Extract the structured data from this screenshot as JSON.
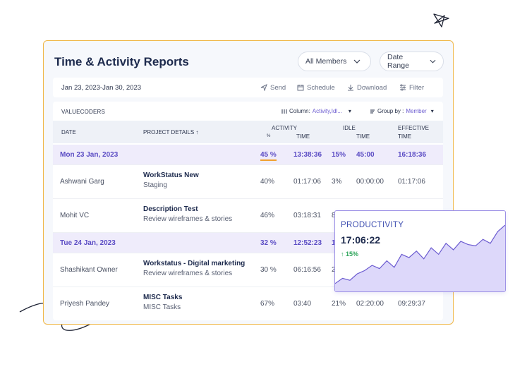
{
  "header": {
    "title": "Time & Activity Reports",
    "members_select": "All Members",
    "date_range_select": "Date Range"
  },
  "toolbar": {
    "date_range": "Jan 23, 2023-Jan 30, 2023",
    "send": "Send",
    "schedule": "Schedule",
    "download": "Download",
    "filter": "Filter"
  },
  "table": {
    "org": "VALUECODERS",
    "column_label": "Column:",
    "column_value": "Activity,Idl...",
    "group_label": "Group by :",
    "group_value": "Member",
    "headers": {
      "date": "DATE",
      "project": "PROJECT DETAILS ↑",
      "activity": "ACTIVITY",
      "activity_pct": "%",
      "activity_time": "TIME",
      "idle": "IDLE",
      "idle_time": "TIME",
      "effective": "EFFECTIVE",
      "effective_time": "TIME"
    },
    "day1": {
      "date": "Mon 23 Jan, 2023",
      "act_pct": "45 %",
      "act_time": "13:38:36",
      "idle_pct": "15%",
      "idle_time": "45:00",
      "effective": "16:18:36"
    },
    "row1": {
      "member": "Ashwani Garg",
      "project": "WorkStatus New",
      "task": "Staging",
      "act_pct": "40%",
      "act_time": "01:17:06",
      "idle_pct": "3%",
      "idle_time": "00:00:00",
      "effective": "01:17:06"
    },
    "row2": {
      "member": "Mohit VC",
      "project": "Description Test",
      "task": "Review wireframes & stories",
      "act_pct": "46%",
      "act_time": "03:18:31",
      "idle_pct": "8"
    },
    "day2": {
      "date": "Tue 24 Jan, 2023",
      "act_pct": "32 %",
      "act_time": "12:52:23",
      "idle_pct": "1"
    },
    "row3": {
      "member": "Shashikant Owner",
      "project": "Workstatus - Digital marketing",
      "task": "Review wireframes & stories",
      "act_pct": "30 %",
      "act_time": "06:16:56",
      "idle_pct": "2"
    },
    "row4": {
      "member": "Priyesh Pandey",
      "project": "MISC Tasks",
      "task": "MISC Tasks",
      "act_pct": "67%",
      "act_time": "03:40",
      "idle_pct": "21%",
      "idle_time": "02:20:00",
      "effective": "09:29:37"
    }
  },
  "productivity": {
    "title": "PRODUCTIVITY",
    "time": "17:06:22",
    "delta": "15%",
    "trend_values": [
      0.1,
      0.18,
      0.15,
      0.25,
      0.3,
      0.38,
      0.33,
      0.45,
      0.35,
      0.55,
      0.5,
      0.6,
      0.48,
      0.65,
      0.55,
      0.72,
      0.62,
      0.75,
      0.7,
      0.68,
      0.78,
      0.72,
      0.9,
      1.0
    ]
  },
  "colors": {
    "accent": "#6b5bd0",
    "border": "#f0b84a",
    "positive": "#2fa55b"
  }
}
